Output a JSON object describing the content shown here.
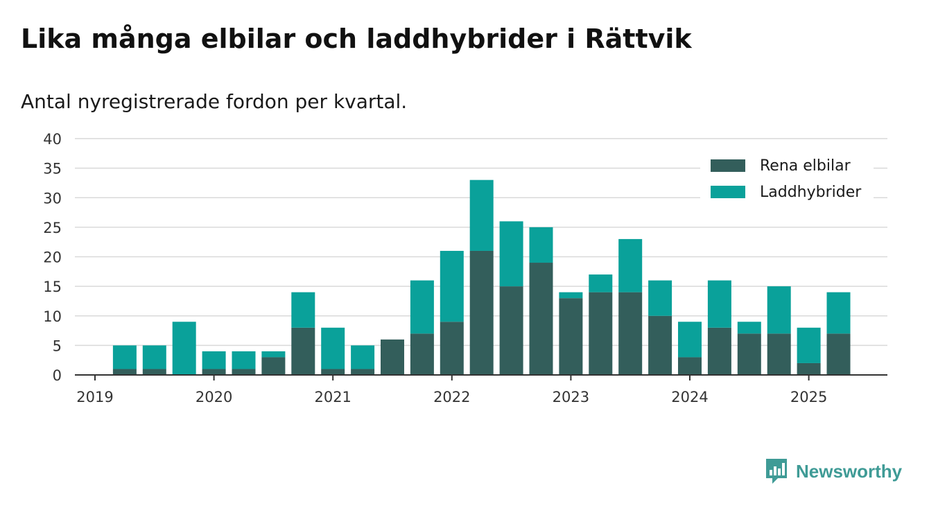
{
  "title": "Lika många elbilar och laddhybrider i Rättvik",
  "subtitle": "Antal nyregistrerade fordon per kvartal.",
  "brand": "Newsworthy",
  "colors": {
    "elbilar": "#335e5b",
    "laddhybrider": "#0aa19a",
    "grid": "#d9d9d9",
    "axis": "#333333",
    "brand": "#3f9b96"
  },
  "chart_data": {
    "type": "bar",
    "stacked": true,
    "title": "Lika många elbilar och laddhybrider i Rättvik",
    "subtitle": "Antal nyregistrerade fordon per kvartal.",
    "xlabel": "",
    "ylabel": "",
    "ylim": [
      0,
      40
    ],
    "yticks": [
      "0",
      "5",
      "10",
      "15",
      "20",
      "25",
      "30",
      "35",
      "40"
    ],
    "xticks": [
      "2019",
      "2020",
      "2021",
      "2022",
      "2023",
      "2024",
      "2025"
    ],
    "grid": true,
    "legend_position": "top-right",
    "categories": [
      "2019 Q1",
      "2019 Q2",
      "2019 Q3",
      "2019 Q4",
      "2020 Q1",
      "2020 Q2",
      "2020 Q3",
      "2020 Q4",
      "2021 Q1",
      "2021 Q2",
      "2021 Q3",
      "2021 Q4",
      "2022 Q1",
      "2022 Q2",
      "2022 Q3",
      "2022 Q4",
      "2023 Q1",
      "2023 Q2",
      "2023 Q3",
      "2023 Q4",
      "2024 Q1",
      "2024 Q2",
      "2024 Q3",
      "2024 Q4",
      "2025 Q1",
      "2025 Q2"
    ],
    "series": [
      {
        "name": "Rena elbilar",
        "color": "#335e5b",
        "values": [
          0,
          1,
          1,
          0,
          1,
          1,
          3,
          8,
          1,
          1,
          6,
          7,
          9,
          21,
          15,
          19,
          13,
          14,
          14,
          10,
          3,
          8,
          7,
          7,
          2,
          7
        ]
      },
      {
        "name": "Laddhybrider",
        "color": "#0aa19a",
        "values": [
          0,
          4,
          4,
          9,
          3,
          3,
          1,
          6,
          7,
          4,
          0,
          9,
          12,
          12,
          11,
          6,
          1,
          3,
          9,
          6,
          6,
          8,
          2,
          8,
          6,
          7
        ]
      }
    ]
  }
}
